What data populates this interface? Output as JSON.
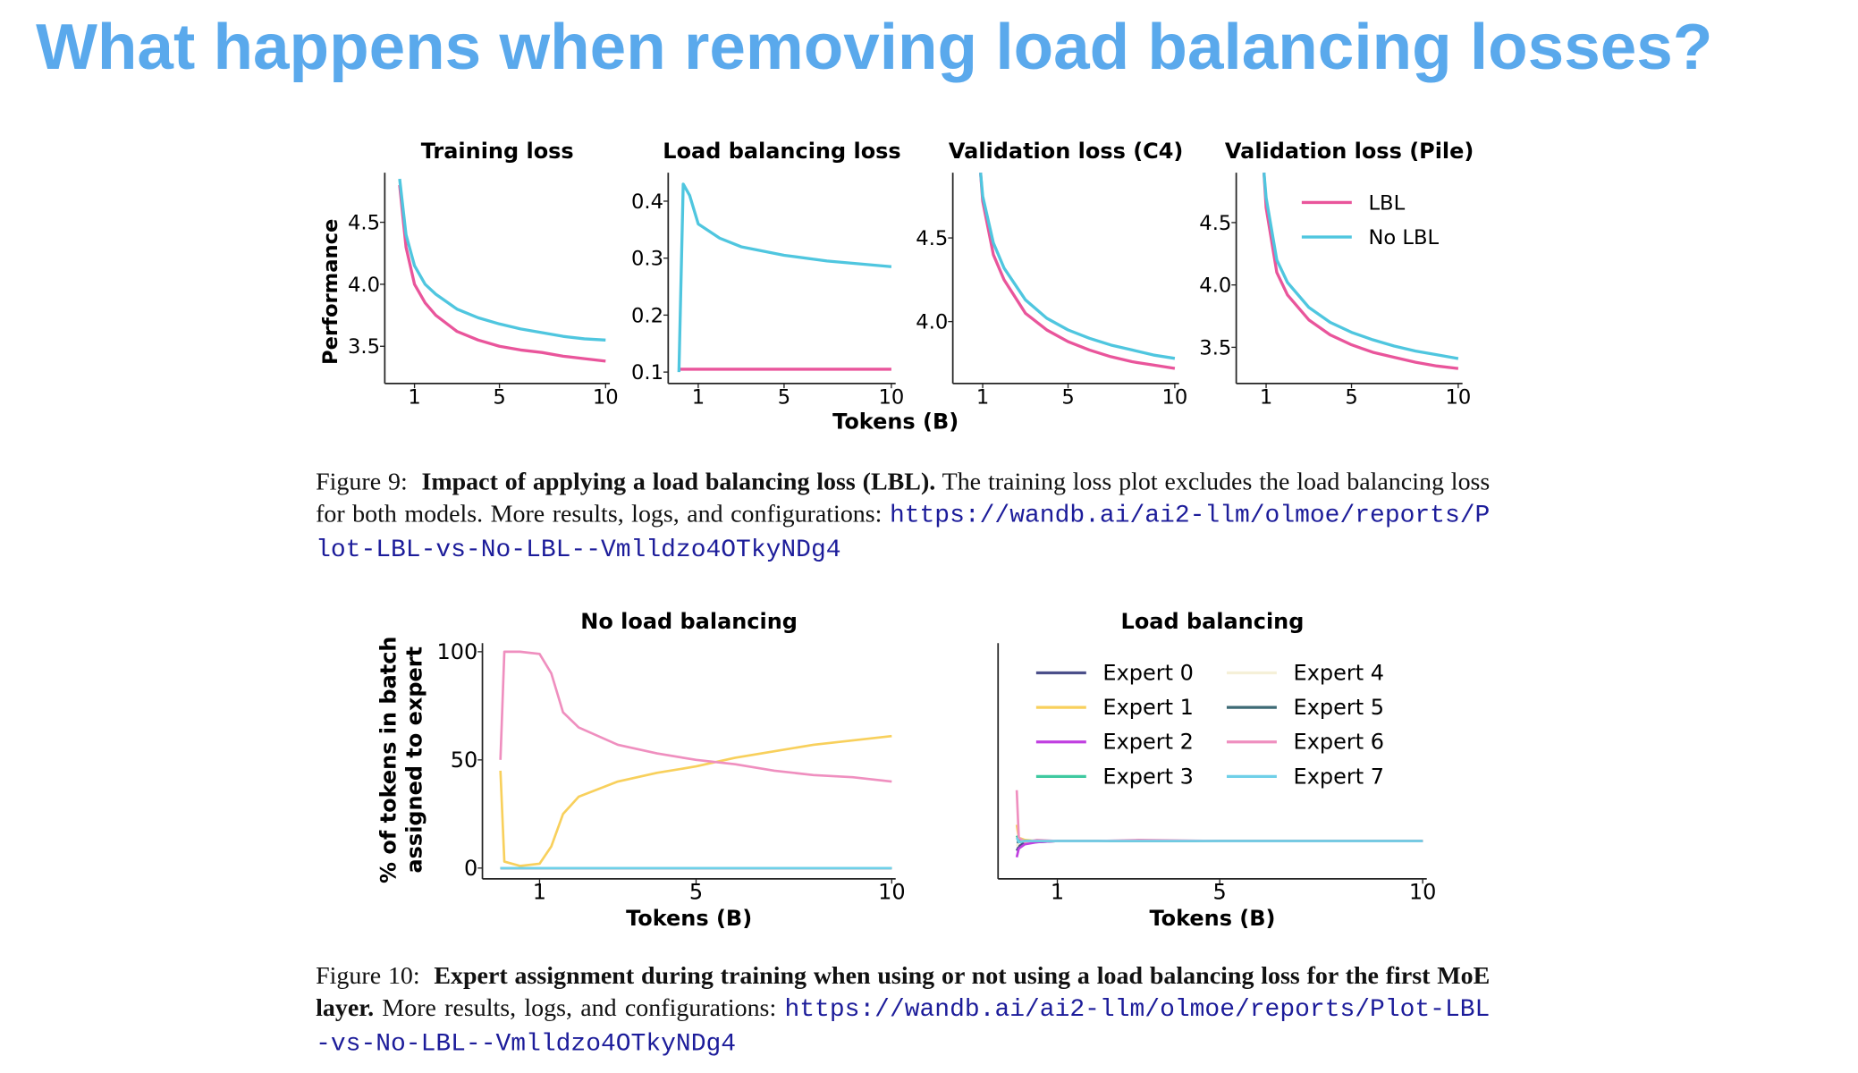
{
  "title": "What happens when removing load balancing losses?",
  "figure9": {
    "y_label": "Performance",
    "x_label": "Tokens (B)",
    "caption": {
      "label": "Figure 9:",
      "bold": "Impact of applying a load balancing loss (LBL).",
      "text": "The training loss plot excludes the load balancing loss for both models. More results, logs, and configurations:",
      "url": "https://wandb.ai/ai2-llm/olmoe/reports/Plot-LBL-vs-No-LBL--Vmlldzo4OTkyNDg4"
    }
  },
  "figure10": {
    "y_label": [
      "% of tokens in batch",
      "assigned to expert"
    ],
    "caption": {
      "label": "Figure 10:",
      "bold": "Expert assignment during training when using or not using a load balancing loss for the first MoE layer.",
      "text": "More results, logs, and configurations:",
      "url": "https://wandb.ai/ai2-llm/olmoe/reports/Plot-LBL-vs-No-LBL--Vmlldzo4OTkyNDg4"
    }
  },
  "chart_data": [
    {
      "type": "line",
      "title": "Training loss",
      "x": [
        0.3,
        0.6,
        1,
        1.5,
        2,
        3,
        4,
        5,
        6,
        7,
        8,
        9,
        10
      ],
      "series": [
        {
          "color": "#e9559b",
          "values": [
            4.8,
            4.3,
            4.0,
            3.85,
            3.75,
            3.62,
            3.55,
            3.5,
            3.47,
            3.45,
            3.42,
            3.4,
            3.38
          ]
        },
        {
          "color": "#4fc6df",
          "values": [
            4.85,
            4.4,
            4.15,
            4.0,
            3.92,
            3.8,
            3.73,
            3.68,
            3.64,
            3.61,
            3.58,
            3.56,
            3.55
          ]
        }
      ],
      "xlim": [
        -0.4,
        10.2
      ],
      "xticks": [
        1,
        5,
        10
      ],
      "ylim": [
        3.2,
        4.9
      ],
      "yticks": [
        3.5,
        {
          "value": 4,
          "label": "4.0"
        },
        4.5
      ]
    },
    {
      "type": "line",
      "title": "Load balancing loss",
      "x": [
        0.1,
        0.3,
        0.6,
        1,
        2,
        3,
        5,
        7,
        10
      ],
      "series": [
        {
          "color": "#e9559b",
          "values": [
            0.105,
            0.105,
            0.105,
            0.105,
            0.105,
            0.105,
            0.105,
            0.105,
            0.105
          ]
        },
        {
          "color": "#4fc6df",
          "values": [
            0.1,
            0.43,
            0.41,
            0.36,
            0.335,
            0.32,
            0.305,
            0.295,
            0.285
          ]
        }
      ],
      "xlim": [
        -0.4,
        10.2
      ],
      "xticks": [
        1,
        5,
        10
      ],
      "ylim": [
        0.08,
        0.45
      ],
      "yticks": [
        0.1,
        0.2,
        0.3,
        0.4
      ]
    },
    {
      "type": "line",
      "title": "Validation loss (C4)",
      "x": [
        0.9,
        1,
        1.5,
        2,
        3,
        4,
        5,
        6,
        7,
        8,
        9,
        10
      ],
      "series": [
        {
          "color": "#e9559b",
          "values": [
            4.89,
            4.72,
            4.4,
            4.25,
            4.05,
            3.95,
            3.88,
            3.83,
            3.79,
            3.76,
            3.74,
            3.72
          ]
        },
        {
          "color": "#4fc6df",
          "values": [
            4.89,
            4.75,
            4.47,
            4.32,
            4.13,
            4.02,
            3.95,
            3.9,
            3.86,
            3.83,
            3.8,
            3.78
          ]
        }
      ],
      "xlim": [
        -0.4,
        10.2
      ],
      "xticks": [
        1,
        5,
        10
      ],
      "ylim": [
        3.63,
        4.89
      ],
      "yticks": [
        {
          "value": 4,
          "label": "4.0"
        },
        4.5
      ]
    },
    {
      "type": "line",
      "title": "Validation loss (Pile)",
      "x": [
        0.9,
        1,
        1.5,
        2,
        3,
        4,
        5,
        6,
        7,
        8,
        9,
        10
      ],
      "series": [
        {
          "name": "LBL",
          "color": "#e9559b",
          "values": [
            4.9,
            4.62,
            4.1,
            3.92,
            3.72,
            3.6,
            3.52,
            3.46,
            3.42,
            3.38,
            3.35,
            3.33
          ]
        },
        {
          "name": "No LBL",
          "color": "#4fc6df",
          "values": [
            4.9,
            4.7,
            4.2,
            4.02,
            3.82,
            3.7,
            3.62,
            3.56,
            3.51,
            3.47,
            3.44,
            3.41
          ]
        }
      ],
      "xlim": [
        -0.4,
        10.2
      ],
      "xticks": [
        1,
        5,
        10
      ],
      "ylim": [
        3.21,
        4.9
      ],
      "yticks": [
        3.5,
        {
          "value": 4,
          "label": "4.0"
        },
        4.5
      ],
      "legend": "upper right"
    },
    {
      "type": "line",
      "title": "No load balancing",
      "x_label": "Tokens (B)",
      "x": [
        0,
        0.1,
        0.5,
        1,
        1.3,
        1.6,
        2,
        3,
        4,
        5,
        6,
        7,
        8,
        9,
        10
      ],
      "series": [
        {
          "color": "#4b4f8a",
          "values": [
            0,
            0,
            0,
            0,
            0,
            0,
            0,
            0,
            0,
            0,
            0,
            0,
            0,
            0,
            0
          ]
        },
        {
          "color": "#f8d05c",
          "values": [
            45,
            3,
            1,
            2,
            10,
            25,
            33,
            40,
            44,
            47,
            51,
            54,
            57,
            59,
            61
          ]
        },
        {
          "color": "#c03fe0",
          "values": [
            0,
            0,
            0,
            0,
            0,
            0,
            0,
            0,
            0,
            0,
            0,
            0,
            0,
            0,
            0
          ]
        },
        {
          "color": "#3fc9a0",
          "values": [
            0,
            0,
            0,
            0,
            0,
            0,
            0,
            0,
            0,
            0,
            0,
            0,
            0,
            0,
            0
          ]
        },
        {
          "color": "#f5f0d8",
          "values": [
            0,
            0,
            0,
            0,
            0,
            0,
            0,
            0,
            0,
            0,
            0,
            0,
            0,
            0,
            0
          ]
        },
        {
          "color": "#3d6a75",
          "values": [
            0,
            0,
            0,
            0,
            0,
            0,
            0,
            0,
            0,
            0,
            0,
            0,
            0,
            0,
            0
          ]
        },
        {
          "color": "#ef8fbf",
          "values": [
            50,
            100,
            100,
            99,
            90,
            72,
            65,
            57,
            53,
            50,
            48,
            45,
            43,
            42,
            40
          ]
        },
        {
          "color": "#6fd0e8",
          "values": [
            0,
            0,
            0,
            0,
            0,
            0,
            0,
            0,
            0,
            0,
            0,
            0,
            0,
            0,
            0
          ]
        }
      ],
      "xlim": [
        -0.46,
        10.1
      ],
      "xticks": [
        1,
        5,
        10
      ],
      "ylim": [
        -5,
        104
      ],
      "yticks": [
        0,
        50,
        100
      ]
    },
    {
      "type": "line",
      "title": "Load balancing",
      "x_label": "Tokens (B)",
      "x": [
        0,
        0.05,
        0.2,
        0.5,
        1,
        2,
        3,
        5,
        7,
        10
      ],
      "series": [
        {
          "name": "Expert 0",
          "color": "#4b4f8a",
          "values": [
            8,
            10,
            12,
            12,
            12.5,
            12.5,
            12.5,
            12.5,
            12.5,
            12.5
          ]
        },
        {
          "name": "Expert 1",
          "color": "#f8d05c",
          "values": [
            20,
            14,
            13,
            12.5,
            12.5,
            12.5,
            12.5,
            12.5,
            12.5,
            12.5
          ]
        },
        {
          "name": "Expert 2",
          "color": "#c03fe0",
          "values": [
            5,
            9,
            11,
            12,
            12.5,
            12.5,
            12.5,
            12.5,
            12.5,
            12.5
          ]
        },
        {
          "name": "Expert 3",
          "color": "#3fc9a0",
          "values": [
            15,
            13,
            12.5,
            12.5,
            12.5,
            12.5,
            12.5,
            12.5,
            12.5,
            12.5
          ]
        },
        {
          "name": "Expert 4",
          "color": "#f5f0d8",
          "values": [
            10,
            12,
            12.5,
            12.5,
            12.5,
            12.5,
            12.5,
            12.5,
            12.5,
            12.5
          ]
        },
        {
          "name": "Expert 5",
          "color": "#3d6a75",
          "values": [
            12,
            12,
            12.5,
            12.5,
            12.5,
            12.5,
            12.5,
            12.5,
            12.5,
            12.5
          ]
        },
        {
          "name": "Expert 6",
          "color": "#ef8fbf",
          "values": [
            36,
            14,
            12,
            13,
            12.5,
            12.5,
            13,
            12.5,
            12.5,
            12.5
          ]
        },
        {
          "name": "Expert 7",
          "color": "#6fd0e8",
          "values": [
            14,
            12,
            12.5,
            12.5,
            12.5,
            12.5,
            12.5,
            12.5,
            12.5,
            12.5
          ]
        }
      ],
      "xlim": [
        -0.46,
        10.1
      ],
      "xticks": [
        1,
        5,
        10
      ],
      "ylim": [
        -5,
        104
      ],
      "legend": "upper left"
    }
  ]
}
